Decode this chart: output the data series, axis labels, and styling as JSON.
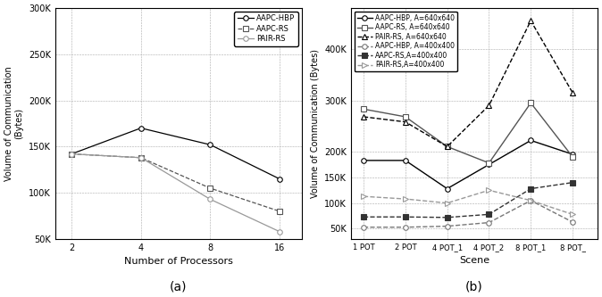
{
  "left_chart": {
    "ylabel": "Volume of Communication\n(Bytes)",
    "xlabel": "Number of Processors",
    "caption": "(a)",
    "x": [
      2,
      4,
      8,
      16
    ],
    "ylim": [
      50000,
      300000
    ],
    "yticks": [
      50000,
      100000,
      150000,
      200000,
      250000,
      300000
    ],
    "ytick_labels": [
      "50K",
      "100K",
      "150K",
      "200K",
      "250K",
      "300K"
    ],
    "series": [
      {
        "label": "AAPC-HBP",
        "y": [
          142000,
          170000,
          152000,
          115000
        ],
        "linestyle": "-",
        "marker": "o",
        "color": "#000000",
        "mfc": "white",
        "mec": "#000000"
      },
      {
        "label": "AAPC-RS",
        "y": [
          142000,
          138000,
          105000,
          80000
        ],
        "linestyle": "--",
        "marker": "s",
        "color": "#555555",
        "mfc": "white",
        "mec": "#555555"
      },
      {
        "label": "PAIR-RS",
        "y": [
          142000,
          138000,
          93000,
          58000
        ],
        "linestyle": "-",
        "marker": "o",
        "color": "#999999",
        "mfc": "white",
        "mec": "#999999"
      }
    ]
  },
  "right_chart": {
    "ylabel": "Volume of Communication (Bytes)",
    "xlabel": "Scene",
    "caption": "(b)",
    "x": [
      0,
      1,
      2,
      3,
      4,
      5
    ],
    "xticklabels": [
      "1 POT",
      "2 POT",
      "4 POT_1",
      "4 POT_2",
      "8 POT_1",
      "8 POT_"
    ],
    "ylim": [
      30000,
      480000
    ],
    "yticks": [
      50000,
      100000,
      150000,
      200000,
      300000,
      400000
    ],
    "ytick_labels": [
      "50K",
      "100K",
      "150K",
      "200K",
      "300K",
      "400K"
    ],
    "series": [
      {
        "label": "AAPC-HBP, A=640x640",
        "y": [
          183000,
          183000,
          128000,
          175000,
          222000,
          195000
        ],
        "linestyle": "-",
        "marker": "o",
        "color": "#000000",
        "mfc": "white",
        "mec": "#000000",
        "lw": 1.0
      },
      {
        "label": "AAPC-RS, A=640x640",
        "y": [
          283000,
          268000,
          210000,
          178000,
          295000,
          190000
        ],
        "linestyle": "-",
        "marker": "s",
        "color": "#555555",
        "mfc": "white",
        "mec": "#555555",
        "lw": 1.0
      },
      {
        "label": "PAIR-RS, A=640x640",
        "y": [
          268000,
          258000,
          210000,
          290000,
          455000,
          315000
        ],
        "linestyle": "--",
        "marker": "^",
        "color": "#000000",
        "mfc": "white",
        "mec": "#000000",
        "lw": 1.0
      },
      {
        "label": "AAPC-HBP, A=400x400",
        "y": [
          53000,
          53000,
          55000,
          62000,
          105000,
          63000
        ],
        "linestyle": "--",
        "marker": "o",
        "color": "#777777",
        "mfc": "white",
        "mec": "#777777",
        "lw": 1.0
      },
      {
        "label": "AAPC-RS,A=400x400",
        "y": [
          73000,
          73000,
          72000,
          78000,
          128000,
          140000
        ],
        "linestyle": "--",
        "marker": "s",
        "color": "#333333",
        "mfc": "#333333",
        "mec": "#333333",
        "lw": 1.0
      },
      {
        "label": "PAIR-RS,A=400x400",
        "y": [
          113000,
          108000,
          100000,
          125000,
          105000,
          78000
        ],
        "linestyle": "--",
        "marker": ">",
        "color": "#999999",
        "mfc": "white",
        "mec": "#999999",
        "lw": 1.0
      }
    ]
  }
}
